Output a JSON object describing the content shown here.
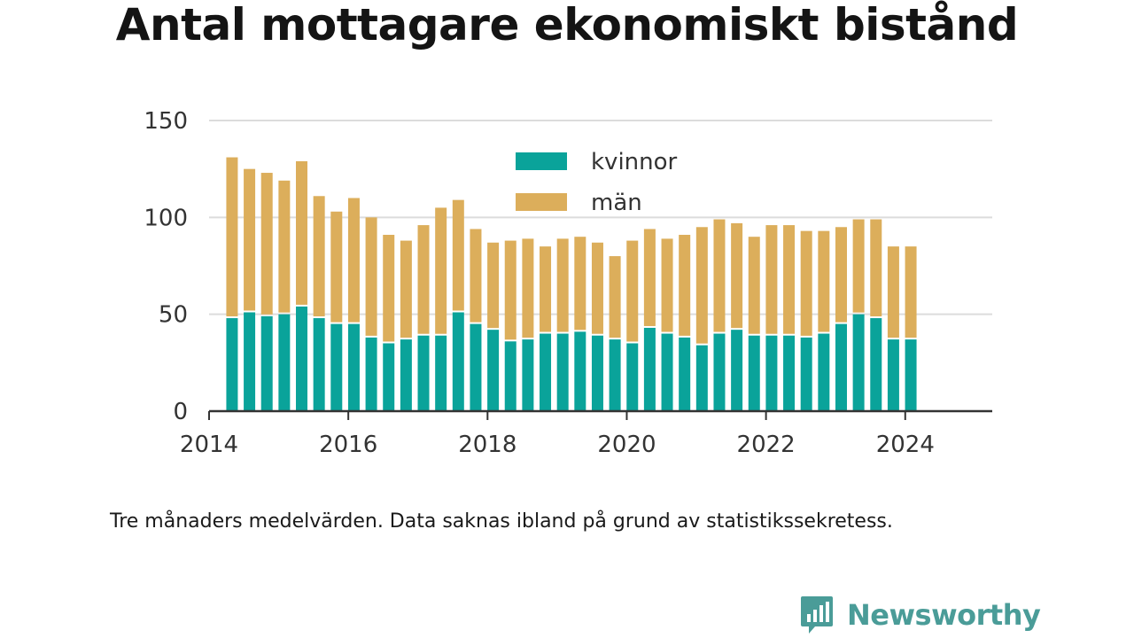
{
  "title": "Antal mottagare ekonomiskt bistånd",
  "note": "Tre månaders medelvärden. Data saknas ibland på grund av statistikssekretess.",
  "brand": {
    "name": "Newsworthy",
    "color": "#4a9c98"
  },
  "chart_data": {
    "type": "bar",
    "stacked": true,
    "legend_position": "top-center",
    "grid": true,
    "x_tick_labels": [
      "2014",
      "2016",
      "2018",
      "2020",
      "2022",
      "2024"
    ],
    "y_ticks": [
      0,
      50,
      100,
      150
    ],
    "ylim": [
      0,
      150
    ],
    "xlim": [
      2014,
      2025.25
    ],
    "x": [
      2014.33,
      2014.58,
      2014.83,
      2015.08,
      2015.33,
      2015.58,
      2015.83,
      2016.08,
      2016.33,
      2016.58,
      2016.83,
      2017.08,
      2017.33,
      2017.58,
      2017.83,
      2018.08,
      2018.33,
      2018.58,
      2018.83,
      2019.08,
      2019.33,
      2019.58,
      2019.83,
      2020.08,
      2020.33,
      2020.58,
      2020.83,
      2021.08,
      2021.33,
      2021.58,
      2021.83,
      2022.08,
      2022.33,
      2022.58,
      2022.83,
      2023.08,
      2023.33,
      2023.58,
      2023.83,
      2024.08
    ],
    "series": [
      {
        "name": "kvinnor",
        "color": "#0aa39a",
        "values": [
          48,
          51,
          49,
          50,
          54,
          48,
          45,
          45,
          38,
          35,
          37,
          39,
          39,
          51,
          45,
          42,
          36,
          37,
          40,
          40,
          41,
          39,
          37,
          35,
          43,
          40,
          38,
          34,
          40,
          42,
          39,
          39,
          39,
          38,
          40,
          45,
          50,
          48,
          37,
          37
        ]
      },
      {
        "name": "män",
        "color": "#dcae5b",
        "values": [
          83,
          74,
          74,
          69,
          75,
          63,
          58,
          65,
          62,
          56,
          51,
          57,
          66,
          58,
          49,
          45,
          52,
          52,
          45,
          49,
          49,
          48,
          43,
          53,
          51,
          49,
          53,
          61,
          59,
          55,
          51,
          57,
          57,
          55,
          53,
          50,
          49,
          51,
          48,
          48
        ]
      }
    ]
  }
}
